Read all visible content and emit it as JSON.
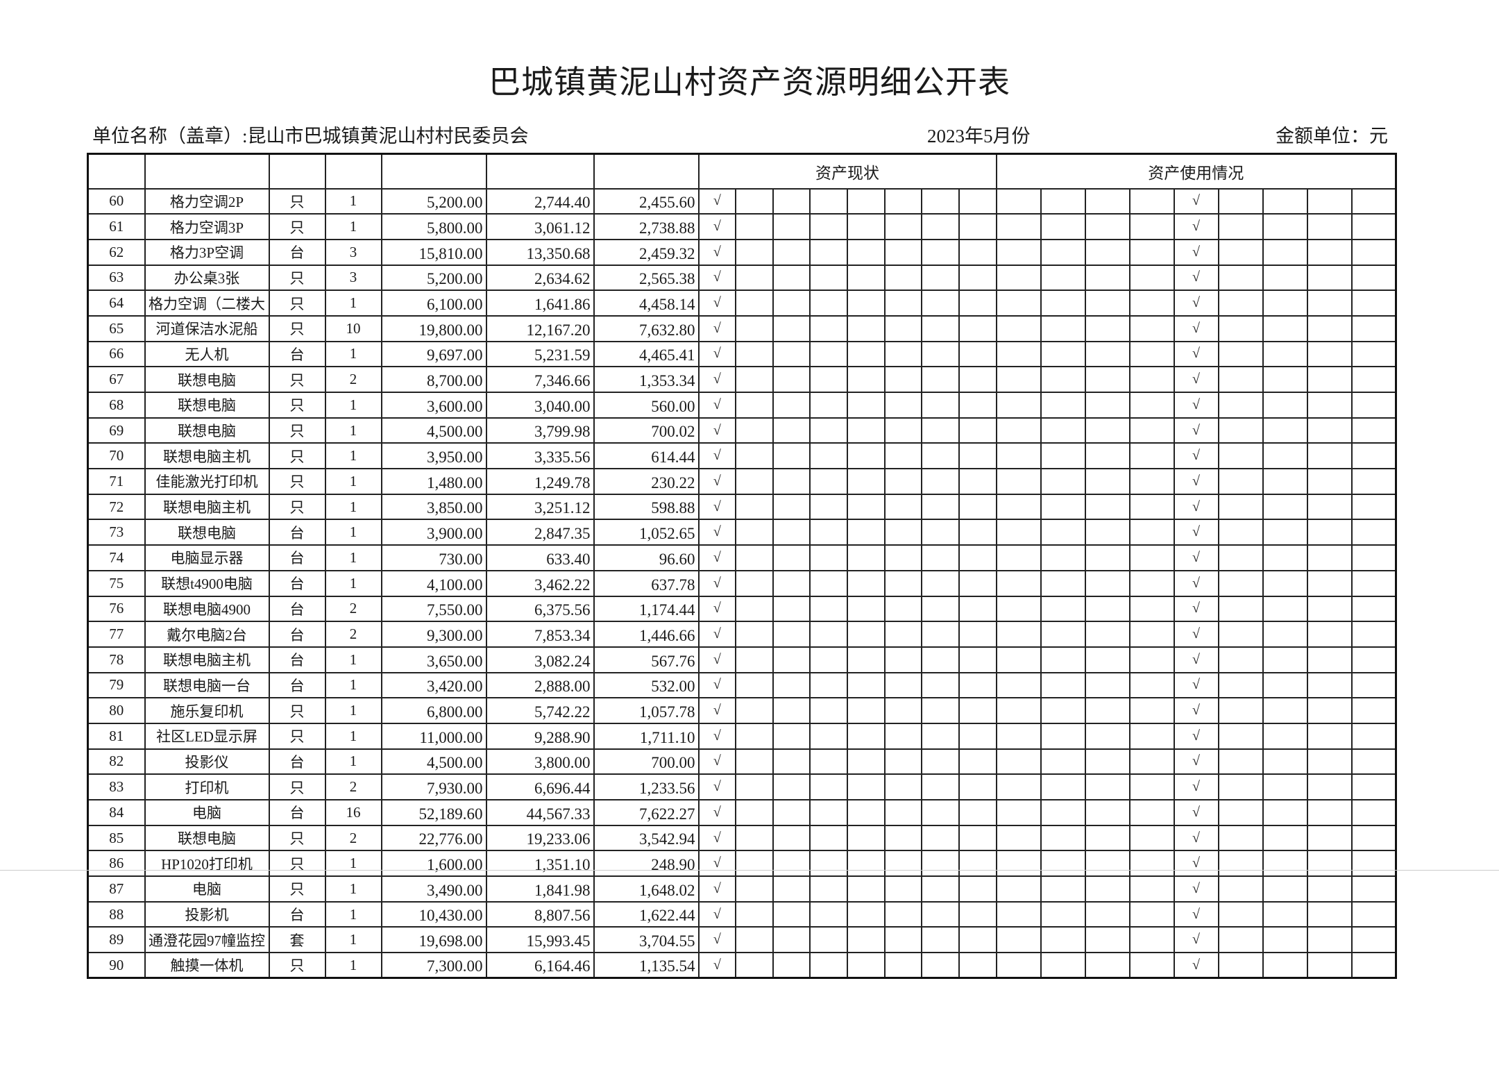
{
  "title": "巴城镇黄泥山村资产资源明细公开表",
  "unit_name": "单位名称（盖章）:昆山市巴城镇黄泥山村村民委员会",
  "period": "2023年5月份",
  "amount_unit": "金额单位：元",
  "headers": {
    "status": "资产现状",
    "usage": "资产使用情况"
  },
  "check_mark": "√",
  "status_columns": 8,
  "usage_columns": 9,
  "rows": [
    {
      "no": "60",
      "name": "格力空调2P",
      "unit": "只",
      "qty": "1",
      "original": "5,200.00",
      "depreciation": "2,744.40",
      "net": "2,455.60",
      "status_col": 1,
      "usage_col": 5
    },
    {
      "no": "61",
      "name": "格力空调3P",
      "unit": "只",
      "qty": "1",
      "original": "5,800.00",
      "depreciation": "3,061.12",
      "net": "2,738.88",
      "status_col": 1,
      "usage_col": 5
    },
    {
      "no": "62",
      "name": "格力3P空调",
      "unit": "台",
      "qty": "3",
      "original": "15,810.00",
      "depreciation": "13,350.68",
      "net": "2,459.32",
      "status_col": 1,
      "usage_col": 5
    },
    {
      "no": "63",
      "name": "办公桌3张",
      "unit": "只",
      "qty": "3",
      "original": "5,200.00",
      "depreciation": "2,634.62",
      "net": "2,565.38",
      "status_col": 1,
      "usage_col": 5
    },
    {
      "no": "64",
      "name": "格力空调（二楼大",
      "unit": "只",
      "qty": "1",
      "original": "6,100.00",
      "depreciation": "1,641.86",
      "net": "4,458.14",
      "status_col": 1,
      "usage_col": 5
    },
    {
      "no": "65",
      "name": "河道保洁水泥船",
      "unit": "只",
      "qty": "10",
      "original": "19,800.00",
      "depreciation": "12,167.20",
      "net": "7,632.80",
      "status_col": 1,
      "usage_col": 5
    },
    {
      "no": "66",
      "name": "无人机",
      "unit": "台",
      "qty": "1",
      "original": "9,697.00",
      "depreciation": "5,231.59",
      "net": "4,465.41",
      "status_col": 1,
      "usage_col": 5
    },
    {
      "no": "67",
      "name": "联想电脑",
      "unit": "只",
      "qty": "2",
      "original": "8,700.00",
      "depreciation": "7,346.66",
      "net": "1,353.34",
      "status_col": 1,
      "usage_col": 5
    },
    {
      "no": "68",
      "name": "联想电脑",
      "unit": "只",
      "qty": "1",
      "original": "3,600.00",
      "depreciation": "3,040.00",
      "net": "560.00",
      "status_col": 1,
      "usage_col": 5
    },
    {
      "no": "69",
      "name": "联想电脑",
      "unit": "只",
      "qty": "1",
      "original": "4,500.00",
      "depreciation": "3,799.98",
      "net": "700.02",
      "status_col": 1,
      "usage_col": 5
    },
    {
      "no": "70",
      "name": "联想电脑主机",
      "unit": "只",
      "qty": "1",
      "original": "3,950.00",
      "depreciation": "3,335.56",
      "net": "614.44",
      "status_col": 1,
      "usage_col": 5
    },
    {
      "no": "71",
      "name": "佳能激光打印机",
      "unit": "只",
      "qty": "1",
      "original": "1,480.00",
      "depreciation": "1,249.78",
      "net": "230.22",
      "status_col": 1,
      "usage_col": 5
    },
    {
      "no": "72",
      "name": "联想电脑主机",
      "unit": "只",
      "qty": "1",
      "original": "3,850.00",
      "depreciation": "3,251.12",
      "net": "598.88",
      "status_col": 1,
      "usage_col": 5
    },
    {
      "no": "73",
      "name": "联想电脑",
      "unit": "台",
      "qty": "1",
      "original": "3,900.00",
      "depreciation": "2,847.35",
      "net": "1,052.65",
      "status_col": 1,
      "usage_col": 5
    },
    {
      "no": "74",
      "name": "电脑显示器",
      "unit": "台",
      "qty": "1",
      "original": "730.00",
      "depreciation": "633.40",
      "net": "96.60",
      "status_col": 1,
      "usage_col": 5
    },
    {
      "no": "75",
      "name": "联想t4900电脑",
      "unit": "台",
      "qty": "1",
      "original": "4,100.00",
      "depreciation": "3,462.22",
      "net": "637.78",
      "status_col": 1,
      "usage_col": 5
    },
    {
      "no": "76",
      "name": "联想电脑4900",
      "unit": "台",
      "qty": "2",
      "original": "7,550.00",
      "depreciation": "6,375.56",
      "net": "1,174.44",
      "status_col": 1,
      "usage_col": 5
    },
    {
      "no": "77",
      "name": "戴尔电脑2台",
      "unit": "台",
      "qty": "2",
      "original": "9,300.00",
      "depreciation": "7,853.34",
      "net": "1,446.66",
      "status_col": 1,
      "usage_col": 5
    },
    {
      "no": "78",
      "name": "联想电脑主机",
      "unit": "台",
      "qty": "1",
      "original": "3,650.00",
      "depreciation": "3,082.24",
      "net": "567.76",
      "status_col": 1,
      "usage_col": 5
    },
    {
      "no": "79",
      "name": "联想电脑一台",
      "unit": "台",
      "qty": "1",
      "original": "3,420.00",
      "depreciation": "2,888.00",
      "net": "532.00",
      "status_col": 1,
      "usage_col": 5
    },
    {
      "no": "80",
      "name": "施乐复印机",
      "unit": "只",
      "qty": "1",
      "original": "6,800.00",
      "depreciation": "5,742.22",
      "net": "1,057.78",
      "status_col": 1,
      "usage_col": 5
    },
    {
      "no": "81",
      "name": "社区LED显示屏",
      "unit": "只",
      "qty": "1",
      "original": "11,000.00",
      "depreciation": "9,288.90",
      "net": "1,711.10",
      "status_col": 1,
      "usage_col": 5
    },
    {
      "no": "82",
      "name": "投影仪",
      "unit": "台",
      "qty": "1",
      "original": "4,500.00",
      "depreciation": "3,800.00",
      "net": "700.00",
      "status_col": 1,
      "usage_col": 5
    },
    {
      "no": "83",
      "name": "打印机",
      "unit": "只",
      "qty": "2",
      "original": "7,930.00",
      "depreciation": "6,696.44",
      "net": "1,233.56",
      "status_col": 1,
      "usage_col": 5
    },
    {
      "no": "84",
      "name": "电脑",
      "unit": "台",
      "qty": "16",
      "original": "52,189.60",
      "depreciation": "44,567.33",
      "net": "7,622.27",
      "status_col": 1,
      "usage_col": 5
    },
    {
      "no": "85",
      "name": "联想电脑",
      "unit": "只",
      "qty": "2",
      "original": "22,776.00",
      "depreciation": "19,233.06",
      "net": "3,542.94",
      "status_col": 1,
      "usage_col": 5
    },
    {
      "no": "86",
      "name": "HP1020打印机",
      "unit": "只",
      "qty": "1",
      "original": "1,600.00",
      "depreciation": "1,351.10",
      "net": "248.90",
      "status_col": 1,
      "usage_col": 5
    },
    {
      "no": "87",
      "name": "电脑",
      "unit": "只",
      "qty": "1",
      "original": "3,490.00",
      "depreciation": "1,841.98",
      "net": "1,648.02",
      "status_col": 1,
      "usage_col": 5
    },
    {
      "no": "88",
      "name": "投影机",
      "unit": "台",
      "qty": "1",
      "original": "10,430.00",
      "depreciation": "8,807.56",
      "net": "1,622.44",
      "status_col": 1,
      "usage_col": 5
    },
    {
      "no": "89",
      "name": "通澄花园97幢监控",
      "unit": "套",
      "qty": "1",
      "original": "19,698.00",
      "depreciation": "15,993.45",
      "net": "3,704.55",
      "status_col": 1,
      "usage_col": 5
    },
    {
      "no": "90",
      "name": "触摸一体机",
      "unit": "只",
      "qty": "1",
      "original": "7,300.00",
      "depreciation": "6,164.46",
      "net": "1,135.54",
      "status_col": 1,
      "usage_col": 5
    }
  ]
}
